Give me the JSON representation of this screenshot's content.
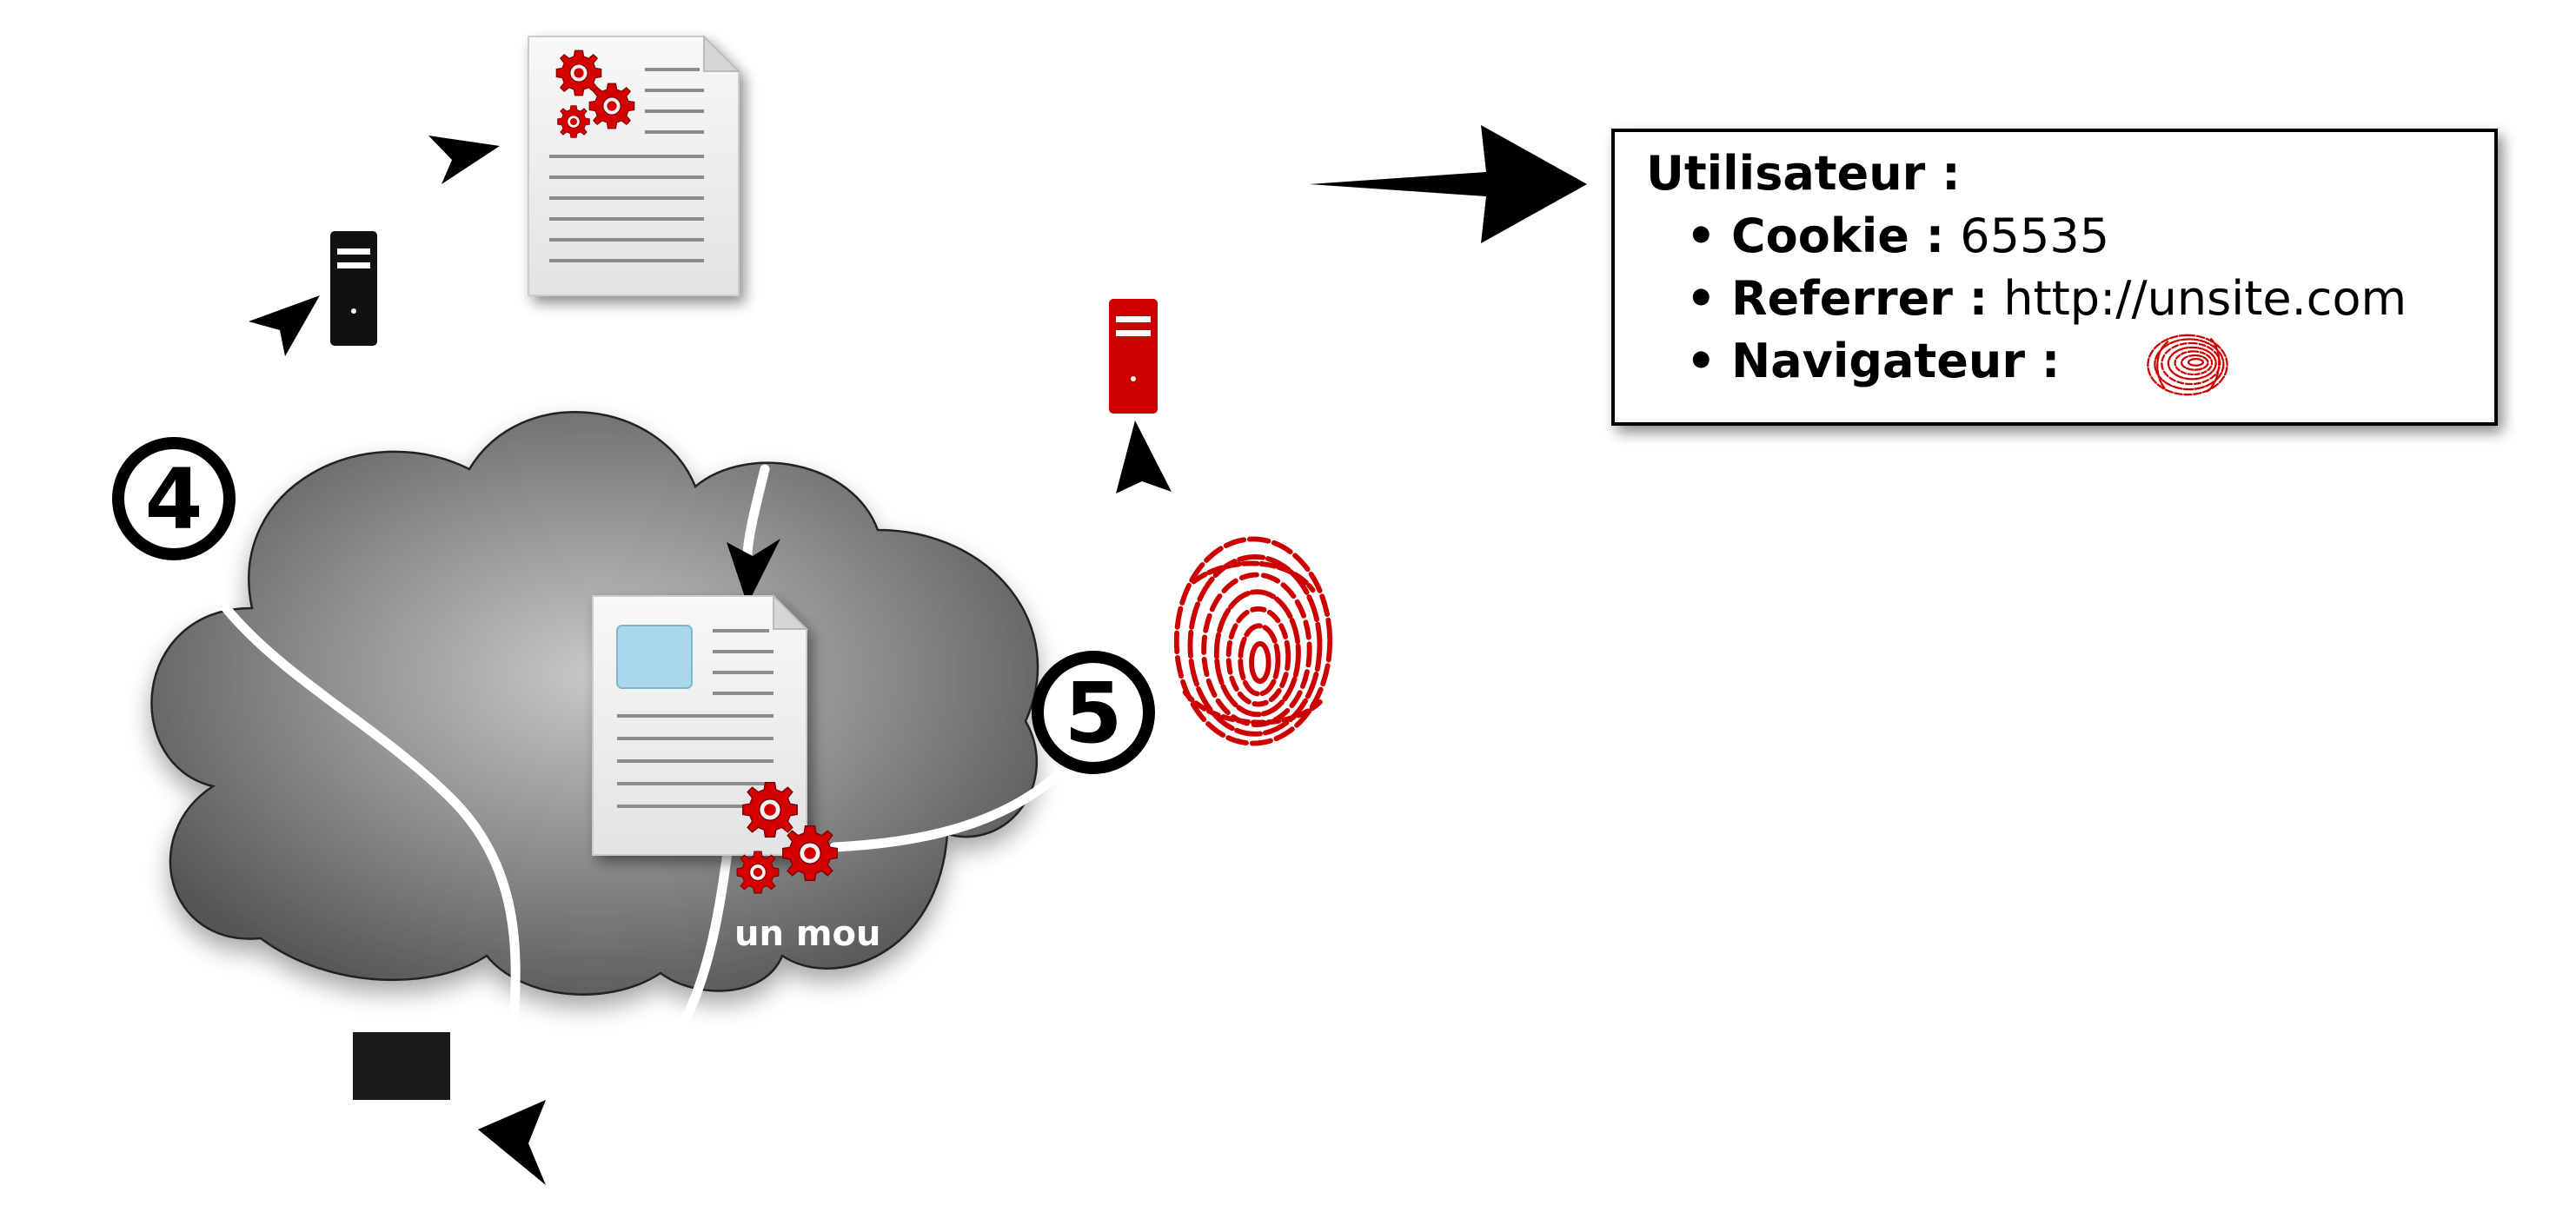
{
  "step_markers": {
    "four": "4",
    "five": "5"
  },
  "cloud_caption": "un mou",
  "info_box": {
    "title": "Utilisateur :",
    "bullet": "•",
    "items": [
      {
        "label": "Cookie :",
        "value": "65535"
      },
      {
        "label": "Referrer :",
        "value": "http://unsite.com"
      },
      {
        "label": "Navigateur :",
        "value": "",
        "icon": "fingerprint-icon"
      }
    ]
  },
  "icons": [
    "document-with-gears-icon",
    "server-icon",
    "red-server-icon",
    "cloud-icon",
    "document-with-image-icon",
    "gears-icon",
    "fingerprint-icon",
    "black-box-icon",
    "arrow-icon"
  ],
  "colors": {
    "accent_red": "#cc0000",
    "server_black": "#111111",
    "cloud_gray": "#808080",
    "doc_blue": "#a8d8ea"
  }
}
